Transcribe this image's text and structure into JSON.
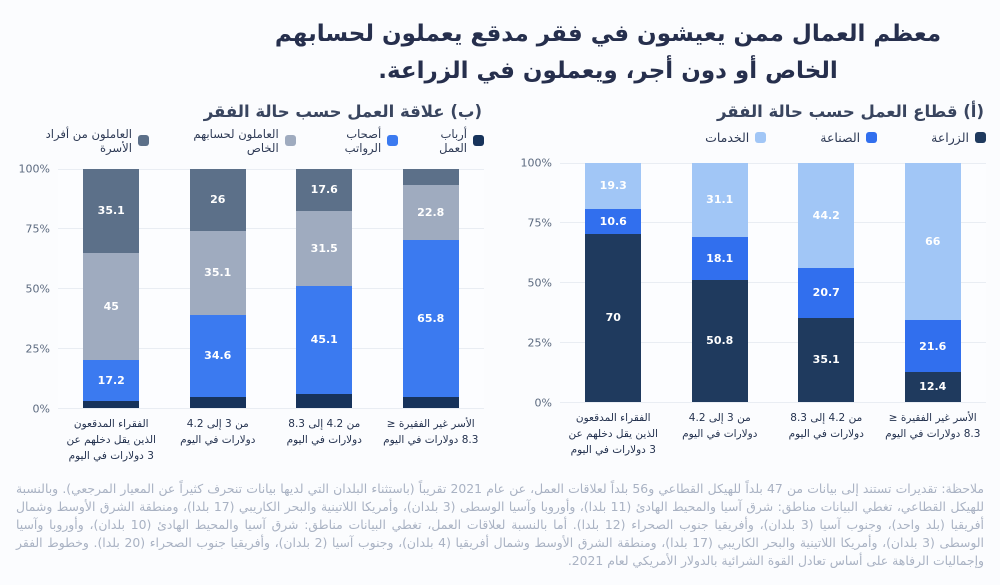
{
  "title": {
    "line1": "معظم العمال ممن يعيشون في فقر مدقع يعملون لحسابهم",
    "line2": "الخاص أو دون أجر، ويعملون في الزراعة."
  },
  "axis": {
    "y_ticks": [
      "100%",
      "75%",
      "50%",
      "25%",
      "0%"
    ],
    "ylim": [
      0,
      100
    ],
    "grid": true,
    "category_lines": [
      [
        "الفقراء المدقعون",
        "الذين يقل دخلهم عن",
        "3 دولارات في اليوم"
      ],
      [
        "من 3 إلى 4.2",
        "دولارات في اليوم"
      ],
      [
        "من 4.2 إلى 8.3",
        "دولارات في اليوم"
      ],
      [
        "الأسر غير الفقيرة ≤",
        "8.3 دولارات في اليوم"
      ]
    ]
  },
  "chart_data": [
    {
      "type": "bar",
      "stacked": true,
      "title": "(أ) قطاع العمل حسب حالة الفقر",
      "legend_position": "top",
      "ylim": [
        0,
        100
      ],
      "categories": [
        "الفقراء المدقعون الذين يقل دخلهم عن 3 دولارات في اليوم",
        "من 3 إلى 4.2 دولارات في اليوم",
        "من 4.2 إلى 8.3 دولارات في اليوم",
        "الأسر غير الفقيرة ≤ 8.3 دولارات في اليوم"
      ],
      "series": [
        {
          "name": "الزراعة",
          "color": "#1f3a5e",
          "values": [
            70,
            50.8,
            35.1,
            12.4
          ]
        },
        {
          "name": "الصناعة",
          "color": "#316fee",
          "values": [
            10.6,
            18.1,
            20.7,
            21.6
          ]
        },
        {
          "name": "الخدمات",
          "color": "#a1c6f6",
          "values": [
            19.3,
            31.1,
            44.2,
            66
          ]
        }
      ]
    },
    {
      "type": "bar",
      "stacked": true,
      "title": "(ب) علاقة العمل حسب حالة الفقر",
      "legend_position": "top",
      "ylim": [
        0,
        100
      ],
      "categories": [
        "الفقراء المدقعون الذين يقل دخلهم عن 3 دولارات في اليوم",
        "من 3 إلى 4.2 دولارات في اليوم",
        "من 4.2 إلى 8.3 دولارات في اليوم",
        "الأسر غير الفقيرة ≤ 8.3 دولارات في اليوم"
      ],
      "series": [
        {
          "name": "أرباب العمل",
          "color": "#17335b",
          "values": [
            2.7,
            4.3,
            5.8,
            4.4
          ],
          "labels": [
            null,
            null,
            null,
            null
          ]
        },
        {
          "name": "أصحاب الرواتب",
          "color": "#3b7af0",
          "values": [
            17.2,
            34.6,
            45.1,
            65.8
          ]
        },
        {
          "name": "العاملون لحسابهم الخاص",
          "color": "#9fabbf",
          "values": [
            45,
            35.1,
            31.5,
            22.8
          ]
        },
        {
          "name": "العاملون من أفراد الأسرة",
          "color": "#5c7089",
          "values": [
            35.1,
            26,
            17.6,
            7
          ],
          "labels": [
            "35.1",
            "26",
            "17.6",
            null
          ]
        }
      ]
    }
  ],
  "footnote": "ملاحظة: تقديرات تستند إلى بيانات من 47 بلداً للهيكل القطاعي و56 بلداً لعلاقات العمل، عن عام 2021 تقريباً (باستثناء البلدان التي لديها بيانات تنحرف كثيراً عن المعيار المرجعي). وبالنسبة للهيكل القطاعي، تغطي البيانات مناطق: شرق آسيا والمحيط الهادئ (11 بلدا)، وأوروبا وآسيا الوسطى (3 بلدان)، وأمريكا اللاتينية والبحر الكاريبي (17 بلدا)، ومنطقة الشرق الأوسط وشمال أفريقيا (بلد واحد)، وجنوب آسيا (3 بلدان)، وأفريقيا جنوب الصحراء (12 بلدا). أما بالنسبة لعلاقات العمل، تغطي البيانات مناطق: شرق آسيا والمحيط الهادئ (10 بلدان)، وأوروبا وآسيا الوسطى (3 بلدان)، وأمريكا اللاتينية والبحر الكاريبي (17 بلدا)، ومنطقة الشرق الأوسط وشمال أفريقيا (4 بلدان)، وجنوب آسيا (2 بلدان)، وأفريقيا جنوب الصحراء (20 بلدا). وخطوط الفقر وإجماليات الرفاهة على أساس تعادل القوة الشرائية بالدولار الأمريكي لعام 2021."
}
